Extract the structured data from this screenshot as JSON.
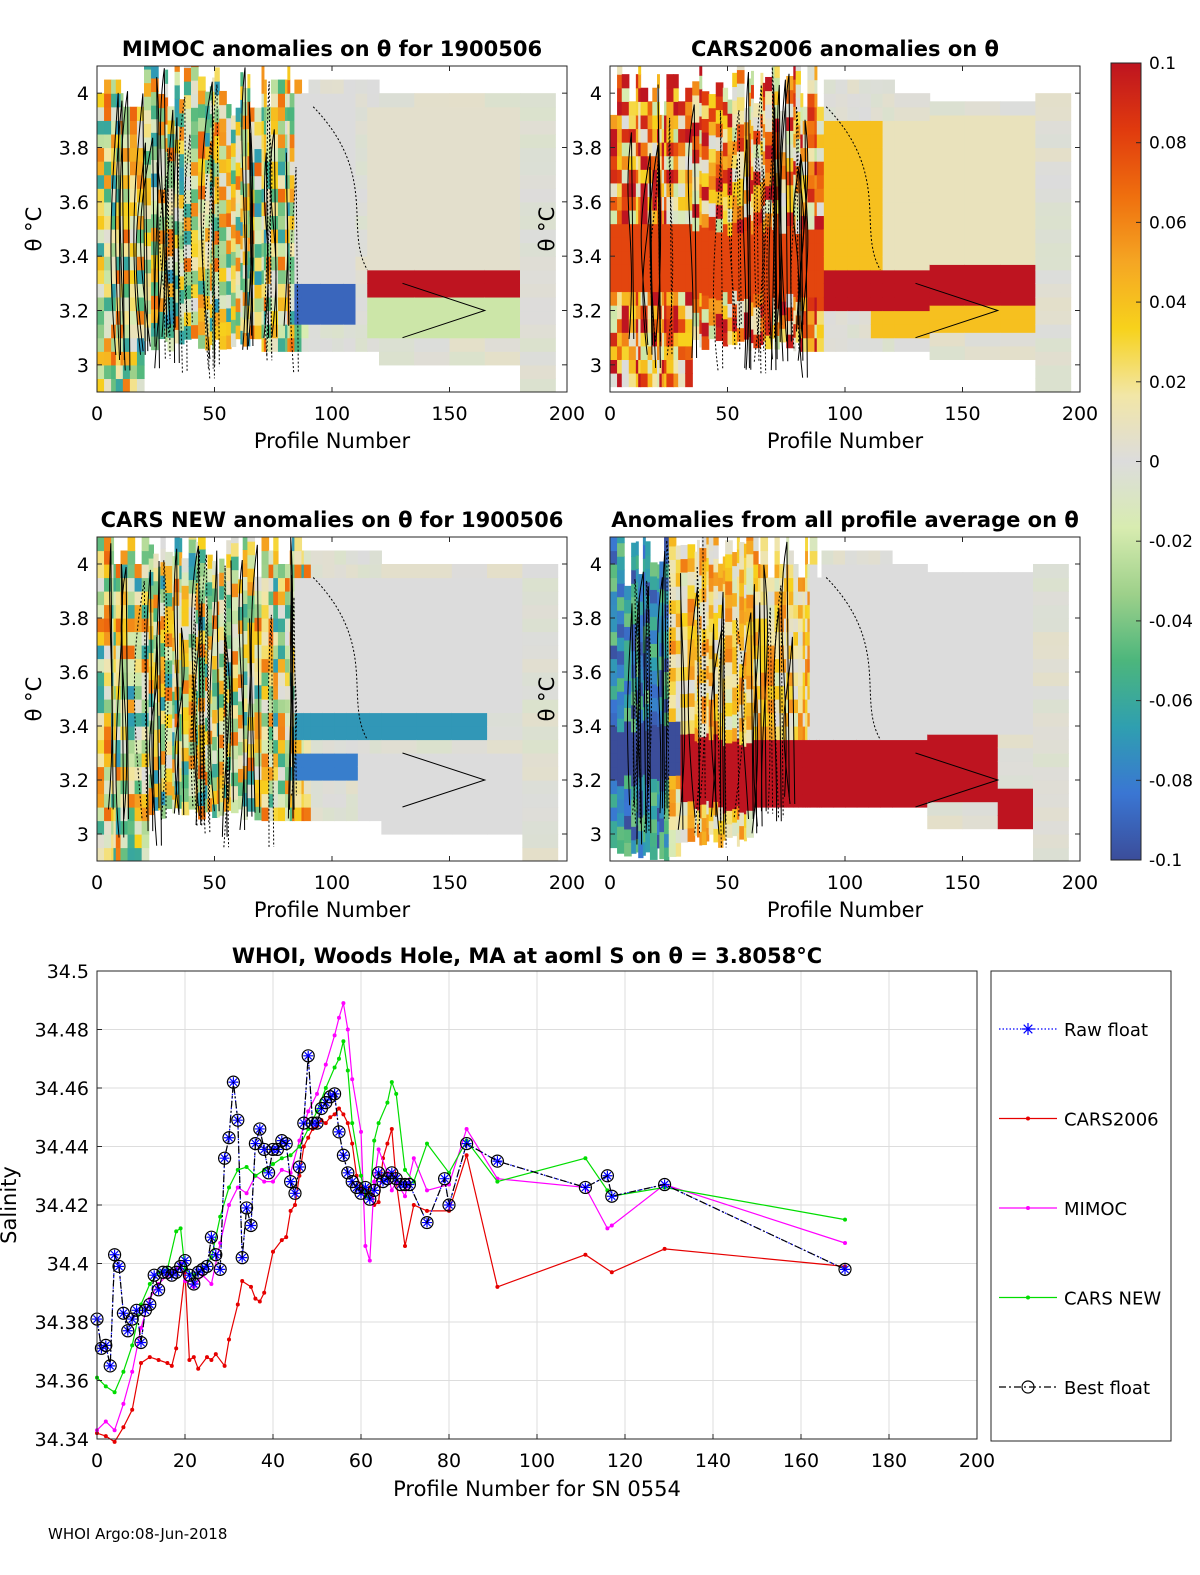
{
  "footer": "WHOI Argo:08-Jun-2018",
  "colors": {
    "raw_float": "#0000ff",
    "cars2006": "#e60000",
    "mimoc": "#ff00ff",
    "cars_new": "#00dd00",
    "best_float": "#000000",
    "grid": "#dddddd",
    "nodata": "#ffffff"
  },
  "colorbar": {
    "range": [
      -0.1,
      0.1
    ],
    "tick_labels": [
      "0.1",
      "0.08",
      "0.06",
      "0.04",
      "0.02",
      "0",
      "-0.02",
      "-0.04",
      "-0.06",
      "-0.08",
      "-0.1"
    ],
    "stops": [
      "#3b4d9a",
      "#3a76d3",
      "#2f9fb0",
      "#4cb67c",
      "#9dd08a",
      "#d8ecb0",
      "#dcdcdc",
      "#f2e6a6",
      "#f7d21c",
      "#f5a623",
      "#ef6f0e",
      "#e03a0e",
      "#be1420"
    ]
  },
  "chart_data": [
    {
      "type": "heatmap",
      "title": "MIMOC anomalies on θ  for 1900506",
      "xlabel": "Profile Number",
      "ylabel": "θ °C",
      "xlim": [
        0,
        200
      ],
      "ylim": [
        2.9,
        4.1
      ],
      "x_ticks": [
        "0",
        "50",
        "100",
        "150",
        "200"
      ],
      "y_ticks": [
        "3",
        "3.2",
        "3.4",
        "3.6",
        "3.8",
        "4"
      ],
      "bands": [
        {
          "y": [
            3.25,
            3.35
          ],
          "x": [
            115,
            185
          ],
          "value": 0.1
        },
        {
          "y": [
            3.1,
            3.25
          ],
          "x": [
            115,
            185
          ],
          "value": -0.02
        },
        {
          "y": [
            3.35,
            3.95
          ],
          "x": [
            115,
            185
          ],
          "value": 0.005
        },
        {
          "y": [
            3.15,
            3.3
          ],
          "x": [
            85,
            110
          ],
          "value": -0.09
        },
        {
          "y": [
            3.3,
            4.0
          ],
          "x": [
            85,
            110
          ],
          "value": 0.0
        }
      ]
    },
    {
      "type": "heatmap",
      "title": "CARS2006 anomalies on θ",
      "xlabel": "Profile Number",
      "ylabel": "θ °C",
      "xlim": [
        0,
        200
      ],
      "ylim": [
        2.9,
        4.1
      ],
      "x_ticks": [
        "0",
        "50",
        "100",
        "150",
        "200"
      ],
      "y_ticks": [
        "3",
        "3.2",
        "3.4",
        "3.6",
        "3.8",
        "4"
      ],
      "bands": [
        {
          "y": [
            3.2,
            3.35
          ],
          "x": [
            90,
            185
          ],
          "value": 0.1
        },
        {
          "y": [
            3.35,
            3.9
          ],
          "x": [
            90,
            115
          ],
          "value": 0.04
        },
        {
          "y": [
            3.35,
            3.9
          ],
          "x": [
            115,
            185
          ],
          "value": 0.01
        },
        {
          "y": [
            3.1,
            3.2
          ],
          "x": [
            110,
            185
          ],
          "value": 0.04
        },
        {
          "y": [
            3.25,
            3.5
          ],
          "x": [
            0,
            90
          ],
          "value": 0.08
        }
      ]
    },
    {
      "type": "heatmap",
      "title": "CARS NEW anomalies on θ for 1900506",
      "xlabel": "Profile Number",
      "ylabel": "θ °C",
      "xlim": [
        0,
        200
      ],
      "ylim": [
        2.9,
        4.1
      ],
      "x_ticks": [
        "0",
        "50",
        "100",
        "150",
        "200"
      ],
      "y_ticks": [
        "3",
        "3.2",
        "3.4",
        "3.6",
        "3.8",
        "4"
      ],
      "bands": [
        {
          "y": [
            3.35,
            3.45
          ],
          "x": [
            85,
            170
          ],
          "value": -0.07
        },
        {
          "y": [
            3.2,
            3.3
          ],
          "x": [
            85,
            110
          ],
          "value": -0.08
        },
        {
          "y": [
            3.0,
            3.3
          ],
          "x": [
            110,
            185
          ],
          "value": 0.0
        },
        {
          "y": [
            3.45,
            3.95
          ],
          "x": [
            85,
            185
          ],
          "value": 0.0
        }
      ]
    },
    {
      "type": "heatmap",
      "title": "Anomalies from all profile average on θ",
      "xlabel": "Profile Number",
      "ylabel": "θ °C",
      "xlim": [
        0,
        200
      ],
      "ylim": [
        2.9,
        4.1
      ],
      "x_ticks": [
        "0",
        "50",
        "100",
        "150",
        "200"
      ],
      "y_ticks": [
        "3",
        "3.2",
        "3.4",
        "3.6",
        "3.8",
        "4"
      ],
      "bands": [
        {
          "y": [
            3.1,
            3.35
          ],
          "x": [
            30,
            165
          ],
          "value": 0.1
        },
        {
          "y": [
            3.2,
            3.4
          ],
          "x": [
            0,
            30
          ],
          "value": -0.1
        },
        {
          "y": [
            3.35,
            4.0
          ],
          "x": [
            85,
            185
          ],
          "value": 0.0
        },
        {
          "y": [
            3.0,
            3.15
          ],
          "x": [
            165,
            185
          ],
          "value": 0.1
        }
      ]
    },
    {
      "type": "line",
      "title": "WHOI, Woods Hole, MA at aoml S on θ = 3.8058°C",
      "xlabel": "Profile Number for SN 0554",
      "ylabel": "Salinity",
      "xlim": [
        0,
        200
      ],
      "ylim": [
        34.34,
        34.5
      ],
      "x_ticks": [
        "0",
        "20",
        "40",
        "60",
        "80",
        "100",
        "120",
        "140",
        "160",
        "180",
        "200"
      ],
      "y_ticks": [
        "34.34",
        "34.36",
        "34.38",
        "34.4",
        "34.42",
        "34.44",
        "34.46",
        "34.48",
        "34.5"
      ],
      "grid": true,
      "legend_position": "outside-right",
      "series": [
        {
          "name": "Raw float",
          "style": "dotted-star",
          "x": [
            0,
            1,
            2,
            3,
            4,
            5,
            6,
            7,
            8,
            9,
            10,
            11,
            12,
            13,
            14,
            15,
            16,
            17,
            18,
            19,
            20,
            21,
            22,
            23,
            24,
            25,
            26,
            27,
            28,
            29,
            30,
            31,
            32,
            33,
            34,
            35,
            36,
            37,
            38,
            39,
            40,
            41,
            42,
            43,
            44,
            45,
            46,
            47,
            48,
            49,
            50,
            51,
            52,
            53,
            54,
            55,
            56,
            57,
            58,
            59,
            60,
            61,
            62,
            63,
            64,
            65,
            66,
            67,
            68,
            69,
            70,
            71,
            75,
            79,
            80,
            84,
            91,
            111,
            116,
            117,
            129,
            170
          ],
          "values": [
            34.381,
            34.371,
            34.372,
            34.365,
            34.403,
            34.399,
            34.383,
            34.377,
            34.381,
            34.384,
            34.373,
            34.384,
            34.386,
            34.396,
            34.391,
            34.397,
            34.397,
            34.396,
            34.397,
            34.399,
            34.401,
            34.396,
            34.393,
            34.397,
            34.398,
            34.399,
            34.409,
            34.403,
            34.398,
            34.436,
            34.443,
            34.462,
            34.449,
            34.402,
            34.419,
            34.413,
            34.441,
            34.446,
            34.439,
            34.431,
            34.439,
            34.439,
            34.442,
            34.441,
            34.428,
            34.424,
            34.433,
            34.448,
            34.471,
            34.448,
            34.448,
            34.453,
            34.455,
            34.457,
            34.458,
            34.445,
            34.437,
            34.431,
            34.428,
            34.426,
            34.424,
            34.426,
            34.422,
            34.425,
            34.431,
            34.428,
            34.429,
            34.431,
            34.429,
            34.427,
            34.427,
            34.427,
            34.414,
            34.429,
            34.42,
            34.441,
            34.435,
            34.426,
            34.43,
            34.423,
            34.427,
            34.398
          ]
        },
        {
          "name": "CARS2006",
          "style": "solid-dot",
          "x": [
            0,
            2,
            4,
            6,
            8,
            10,
            12,
            14,
            16,
            17,
            18,
            20,
            21,
            22,
            23,
            25,
            26,
            27,
            29,
            30,
            32,
            33,
            35,
            36,
            37,
            38,
            40,
            42,
            43,
            44,
            45,
            46,
            47,
            48,
            49,
            50,
            51,
            52,
            53,
            54,
            55,
            56,
            57,
            58,
            59,
            60,
            61,
            62,
            63,
            64,
            65,
            66,
            67,
            68,
            70,
            72,
            75,
            80,
            84,
            91,
            111,
            117,
            129,
            170
          ],
          "values": [
            34.342,
            34.341,
            34.339,
            34.344,
            34.35,
            34.366,
            34.368,
            34.367,
            34.366,
            34.365,
            34.371,
            34.397,
            34.367,
            34.368,
            34.364,
            34.368,
            34.367,
            34.369,
            34.365,
            34.374,
            34.386,
            34.394,
            34.392,
            34.388,
            34.387,
            34.39,
            34.404,
            34.408,
            34.409,
            34.418,
            34.42,
            34.43,
            34.44,
            34.443,
            34.446,
            34.447,
            34.449,
            34.448,
            34.45,
            34.451,
            34.453,
            34.451,
            34.448,
            34.441,
            34.43,
            34.426,
            34.423,
            34.426,
            34.42,
            34.421,
            34.436,
            34.441,
            34.446,
            34.428,
            34.406,
            34.42,
            34.418,
            34.418,
            34.437,
            34.392,
            34.403,
            34.397,
            34.405,
            34.399
          ]
        },
        {
          "name": "MIMOC",
          "style": "solid-dot",
          "x": [
            0,
            2,
            4,
            6,
            8,
            10,
            12,
            14,
            16,
            18,
            19,
            20,
            22,
            24,
            26,
            28,
            30,
            32,
            34,
            36,
            38,
            40,
            42,
            44,
            46,
            48,
            50,
            52,
            54,
            55,
            56,
            57,
            58,
            60,
            61,
            62,
            63,
            64,
            66,
            67,
            68,
            70,
            72,
            75,
            80,
            84,
            91,
            111,
            116,
            117,
            129,
            170
          ],
          "values": [
            34.343,
            34.346,
            34.343,
            34.352,
            34.363,
            34.378,
            34.388,
            34.393,
            34.396,
            34.398,
            34.4,
            34.394,
            34.392,
            34.396,
            34.393,
            34.407,
            34.42,
            34.426,
            34.424,
            34.43,
            34.428,
            34.428,
            34.432,
            34.431,
            34.442,
            34.452,
            34.458,
            34.468,
            34.478,
            34.484,
            34.489,
            34.48,
            34.463,
            34.445,
            34.406,
            34.401,
            34.428,
            34.439,
            34.431,
            34.425,
            34.428,
            34.423,
            34.436,
            34.425,
            34.427,
            34.446,
            34.429,
            34.426,
            34.412,
            34.413,
            34.427,
            34.407
          ]
        },
        {
          "name": "CARS NEW",
          "style": "solid-dot",
          "x": [
            0,
            2,
            4,
            6,
            8,
            10,
            12,
            14,
            16,
            18,
            19,
            20,
            22,
            24,
            26,
            28,
            30,
            32,
            34,
            36,
            38,
            40,
            42,
            44,
            46,
            48,
            50,
            52,
            54,
            55,
            56,
            57,
            58,
            60,
            61,
            62,
            63,
            64,
            66,
            67,
            68,
            70,
            72,
            75,
            80,
            84,
            91,
            111,
            116,
            117,
            129,
            170
          ],
          "values": [
            34.361,
            34.358,
            34.356,
            34.363,
            34.372,
            34.386,
            34.393,
            34.397,
            34.398,
            34.411,
            34.412,
            34.398,
            34.396,
            34.398,
            34.402,
            34.416,
            34.426,
            34.432,
            34.433,
            34.43,
            34.432,
            34.434,
            34.436,
            34.437,
            34.44,
            34.446,
            34.452,
            34.46,
            34.467,
            34.47,
            34.476,
            34.466,
            34.448,
            34.43,
            34.423,
            34.422,
            34.442,
            34.448,
            34.455,
            34.462,
            34.458,
            34.432,
            34.428,
            34.441,
            34.431,
            34.442,
            34.428,
            34.436,
            34.425,
            34.423,
            34.426,
            34.415
          ]
        },
        {
          "name": "Best float",
          "style": "dashdot-circle",
          "x": [
            0,
            1,
            2,
            3,
            4,
            5,
            6,
            7,
            8,
            9,
            10,
            11,
            12,
            13,
            14,
            15,
            16,
            17,
            18,
            19,
            20,
            21,
            22,
            23,
            24,
            25,
            26,
            27,
            28,
            29,
            30,
            31,
            32,
            33,
            34,
            35,
            36,
            37,
            38,
            39,
            40,
            41,
            42,
            43,
            44,
            45,
            46,
            47,
            48,
            49,
            50,
            51,
            52,
            53,
            54,
            55,
            56,
            57,
            58,
            59,
            60,
            61,
            62,
            63,
            64,
            65,
            66,
            67,
            68,
            69,
            70,
            71,
            75,
            79,
            80,
            84,
            91,
            111,
            116,
            117,
            129,
            170
          ],
          "values": [
            34.381,
            34.371,
            34.372,
            34.365,
            34.403,
            34.399,
            34.383,
            34.377,
            34.381,
            34.384,
            34.373,
            34.384,
            34.386,
            34.396,
            34.391,
            34.397,
            34.397,
            34.396,
            34.397,
            34.399,
            34.401,
            34.396,
            34.393,
            34.397,
            34.398,
            34.399,
            34.409,
            34.403,
            34.398,
            34.436,
            34.443,
            34.462,
            34.449,
            34.402,
            34.419,
            34.413,
            34.441,
            34.446,
            34.439,
            34.431,
            34.439,
            34.439,
            34.442,
            34.441,
            34.428,
            34.424,
            34.433,
            34.448,
            34.471,
            34.448,
            34.448,
            34.453,
            34.455,
            34.457,
            34.458,
            34.445,
            34.437,
            34.431,
            34.428,
            34.426,
            34.424,
            34.426,
            34.422,
            34.425,
            34.431,
            34.428,
            34.429,
            34.431,
            34.429,
            34.427,
            34.427,
            34.427,
            34.414,
            34.429,
            34.42,
            34.441,
            34.435,
            34.426,
            34.43,
            34.423,
            34.427,
            34.398
          ]
        }
      ]
    }
  ]
}
